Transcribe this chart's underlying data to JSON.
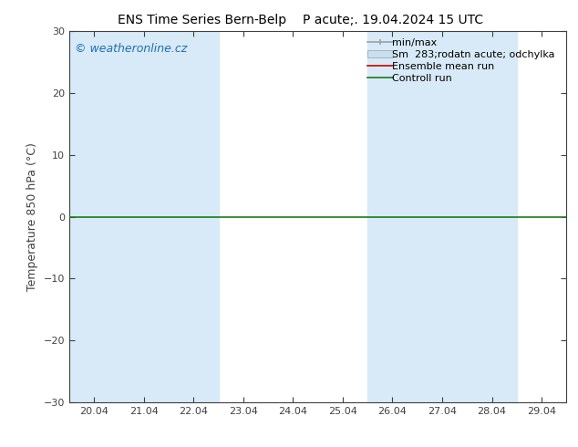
{
  "title_left": "ENS Time Series Bern-Belp",
  "title_right": "P acute;. 19.04.2024 15 UTC",
  "ylabel": "Temperature 850 hPa (°C)",
  "ylim": [
    -30,
    30
  ],
  "yticks": [
    -30,
    -20,
    -10,
    0,
    10,
    20,
    30
  ],
  "x_labels": [
    "20.04",
    "21.04",
    "22.04",
    "23.04",
    "24.04",
    "25.04",
    "26.04",
    "27.04",
    "28.04",
    "29.04"
  ],
  "x_positions": [
    0,
    1,
    2,
    3,
    4,
    5,
    6,
    7,
    8,
    9
  ],
  "shaded_columns": [
    0,
    1,
    2,
    6,
    7,
    8
  ],
  "shade_color": "#d8eaf7",
  "background_color": "#ffffff",
  "watermark": "© weatheronline.cz",
  "watermark_color": "#1a6eb5",
  "zero_line_color": "#1a7a1a",
  "legend_minmax_color": "#a0a0a0",
  "legend_fill_color": "#c8dff0",
  "legend_ens_color": "#cc0000",
  "legend_ctrl_color": "#1a7a1a",
  "font_size_title": 10,
  "font_size_axis_label": 9,
  "font_size_tick": 8,
  "font_size_legend": 8,
  "font_size_watermark": 9,
  "spine_color": "#404040",
  "tick_color": "#404040"
}
